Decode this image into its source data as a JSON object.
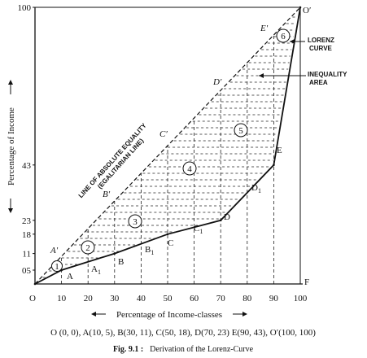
{
  "labels": {
    "origin": "O",
    "o_prime": "O′",
    "f": "F",
    "a_prime": "A′",
    "b_prime": "B′",
    "c_prime": "C′",
    "d_prime": "D′",
    "e_prime": "E′",
    "a": "A",
    "b": "B",
    "c": "C",
    "d": "D",
    "e": "E",
    "a1": "A",
    "b1": "B",
    "c1": "C",
    "d1": "D",
    "sub1": "1"
  },
  "x_ticks": [
    "10",
    "20",
    "30",
    "40",
    "50",
    "60",
    "70",
    "80",
    "90",
    "100"
  ],
  "y_ticks": [
    "05",
    "11",
    "18",
    "23",
    "43",
    "100"
  ],
  "areas": [
    "1",
    "2",
    "3",
    "4",
    "5",
    "6"
  ],
  "annotations": {
    "lorenz_line1": "LORENZ",
    "lorenz_line2": "CURVE",
    "inequality_line1": "INEQUALITY",
    "inequality_line2": "AREA",
    "equality_line1": "LINE OF ABSOLUTE EQUALITY",
    "equality_line2": "(EGALITARIAN LINE)"
  },
  "axes": {
    "y_title": "Percentage of Income",
    "x_title": "Percentage of Income-classes"
  },
  "points_text": "O (0, 0), A(10, 5), B(30, 11), C(50, 18), D(70, 23) E(90, 43), O′(100, 100)",
  "caption": {
    "fig": "Fig. 9.1 :",
    "text": "Derivation of the Lorenz-Curve"
  },
  "chart_data": {
    "type": "line",
    "series": [
      {
        "name": "LORENZ CURVE",
        "x": [
          0,
          10,
          30,
          50,
          70,
          90,
          100
        ],
        "y": [
          0,
          5,
          11,
          18,
          23,
          43,
          100
        ]
      },
      {
        "name": "LINE OF ABSOLUTE EQUALITY",
        "x": [
          0,
          100
        ],
        "y": [
          0,
          100
        ]
      }
    ],
    "xlabel": "Percentage of Income-classes",
    "ylabel": "Percentage of Income",
    "xlim": [
      0,
      100
    ],
    "ylim": [
      0,
      100
    ]
  }
}
